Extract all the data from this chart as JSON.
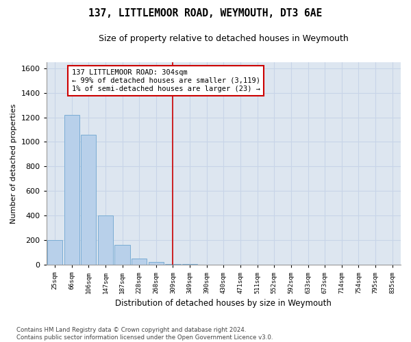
{
  "title": "137, LITTLEMOOR ROAD, WEYMOUTH, DT3 6AE",
  "subtitle": "Size of property relative to detached houses in Weymouth",
  "xlabel": "Distribution of detached houses by size in Weymouth",
  "ylabel": "Number of detached properties",
  "categories": [
    "25sqm",
    "66sqm",
    "106sqm",
    "147sqm",
    "187sqm",
    "228sqm",
    "268sqm",
    "309sqm",
    "349sqm",
    "390sqm",
    "430sqm",
    "471sqm",
    "511sqm",
    "552sqm",
    "592sqm",
    "633sqm",
    "673sqm",
    "714sqm",
    "754sqm",
    "795sqm",
    "835sqm"
  ],
  "values": [
    200,
    1220,
    1060,
    405,
    165,
    50,
    25,
    10,
    10,
    0,
    0,
    0,
    0,
    0,
    0,
    0,
    0,
    0,
    0,
    0,
    0
  ],
  "bar_color": "#b8d0ea",
  "bar_edge_color": "#7aacd4",
  "vline_x_index": 7,
  "vline_color": "#cc0000",
  "annotation_text": "137 LITTLEMOOR ROAD: 304sqm\n← 99% of detached houses are smaller (3,119)\n1% of semi-detached houses are larger (23) →",
  "annotation_box_color": "#ffffff",
  "annotation_box_edge": "#cc0000",
  "ylim": [
    0,
    1650
  ],
  "yticks": [
    0,
    200,
    400,
    600,
    800,
    1000,
    1200,
    1400,
    1600
  ],
  "grid_color": "#c8d4e8",
  "background_color": "#dde6f0",
  "fig_background_color": "#ffffff",
  "footnote": "Contains HM Land Registry data © Crown copyright and database right 2024.\nContains public sector information licensed under the Open Government Licence v3.0."
}
